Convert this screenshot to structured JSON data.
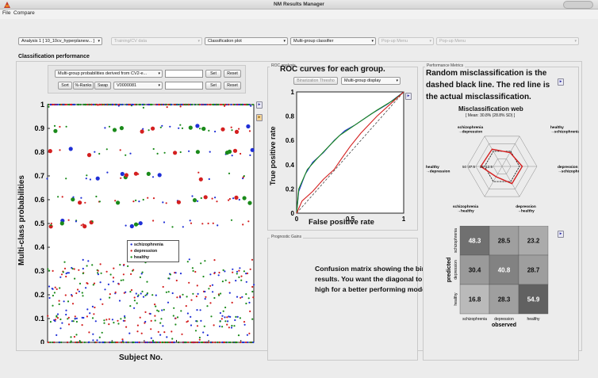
{
  "window": {
    "title": "NM Results Manager"
  },
  "menu": [
    "File",
    "Compare"
  ],
  "toolbar": {
    "analysis": "Analysis 1 [ 10_10cv_hyperplanew... ]",
    "data": "Training/CV data",
    "plot_type": "Classification plot",
    "classifier": "Multi-group classifier",
    "popup1": "Pop-up Menu",
    "popup2": "Pop-up Menu"
  },
  "classification": {
    "section_title": "Classification performance",
    "probabilities_select": "Multi-group probabilities derived from CV2-e...",
    "set_label": "Set",
    "reset_label": "Reset",
    "sort_label": "Sort",
    "ranks_label": "%-Ranks",
    "swap_label": "Swap",
    "subject_select": "V0000081",
    "plot": {
      "ylabel": "Multi-class probabilities",
      "xlabel": "Subject No.",
      "yticks": [
        "0",
        "0.1",
        "0.2",
        "0.3",
        "0.4",
        "0.5",
        "0.6",
        "0.7",
        "0.8",
        "0.9",
        "1"
      ],
      "xticks": [
        "100",
        "200",
        "300",
        "400",
        "500",
        "600"
      ],
      "legend": [
        "schizophrenia",
        "depression",
        "healthy"
      ],
      "colors": {
        "schizophrenia": "#1f2fd6",
        "depression": "#d41f1f",
        "healthy": "#1a8a1a"
      }
    }
  },
  "roc": {
    "panel_label": "ROC analysis",
    "annotation": "ROC curves for each group.",
    "threshold_btn": "Binarization Thresho",
    "display_select": "Multi-group display",
    "xlabel": "False positive rate",
    "ylabel": "True positive rate",
    "xticks": [
      "0",
      "0.5",
      "1"
    ],
    "yticks": [
      "0",
      "0.2",
      "0.4",
      "0.6",
      "0.8",
      "1"
    ]
  },
  "prognostic": {
    "panel_label": "Prognostic Gains",
    "annotation": "Confusion matrix showing the binary results. You want the diagonal to be high for a better performing model."
  },
  "metrics": {
    "panel_label": "Performance Metrics",
    "annotation": "Random misclassification is the dashed black line. The red line is the actual misclassification.",
    "web_title": "Misclassification web",
    "web_subtitle": "[ Mean: 30.8% (28.8% SD) ]",
    "web_axes": [
      "healthy\n→schizophrenia",
      "depression\n→schizophrenia",
      "depression\n→healthy",
      "schizophrenia\n→healthy",
      "healthy\n→depression",
      "schizophrenia\n→depression"
    ],
    "web_ticks": [
      "12.5",
      "25",
      "37.5",
      "50"
    ],
    "confusion": {
      "rows": [
        "schizophrenia",
        "depression",
        "healthy"
      ],
      "cols": [
        "schizophrenia",
        "depression",
        "healthy"
      ],
      "values": [
        [
          "48.3",
          "28.5",
          "23.2"
        ],
        [
          "30.4",
          "40.8",
          "28.7"
        ],
        [
          "16.8",
          "28.3",
          "54.9"
        ]
      ],
      "ylabel": "predicted",
      "xlabel": "observed"
    }
  }
}
